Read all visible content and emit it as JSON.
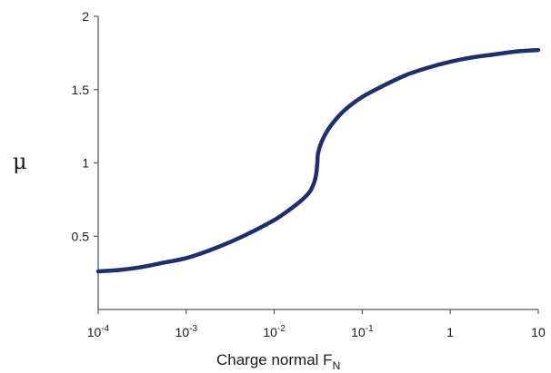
{
  "chart_data": {
    "type": "line",
    "x_scale": "log",
    "xlim": [
      0.0001,
      10
    ],
    "ylim": [
      0,
      2
    ],
    "xlabel_main": "Charge normal F",
    "xlabel_subscript": "N",
    "ylabel": "μ",
    "grid": false,
    "line_color": "#1f2f6b",
    "x_ticks": [
      {
        "value": 0.0001,
        "base": "10",
        "exp": "-4"
      },
      {
        "value": 0.001,
        "base": "10",
        "exp": "-3"
      },
      {
        "value": 0.01,
        "base": "10",
        "exp": "-2"
      },
      {
        "value": 0.1,
        "base": "10",
        "exp": "-1"
      },
      {
        "value": 1,
        "base": "1",
        "exp": ""
      },
      {
        "value": 10,
        "base": "10",
        "exp": ""
      }
    ],
    "y_ticks": [
      {
        "value": 0.5,
        "label": "0.5"
      },
      {
        "value": 1,
        "label": "1"
      },
      {
        "value": 1.5,
        "label": "1.5"
      },
      {
        "value": 2,
        "label": "2"
      }
    ],
    "series": [
      {
        "points": [
          {
            "x": 0.0001,
            "y": 0.26
          },
          {
            "x": 0.000178,
            "y": 0.27
          },
          {
            "x": 0.000316,
            "y": 0.29
          },
          {
            "x": 0.000562,
            "y": 0.32
          },
          {
            "x": 0.001,
            "y": 0.35
          },
          {
            "x": 0.00178,
            "y": 0.4
          },
          {
            "x": 0.00316,
            "y": 0.46
          },
          {
            "x": 0.00562,
            "y": 0.53
          },
          {
            "x": 0.01,
            "y": 0.61
          },
          {
            "x": 0.0141,
            "y": 0.67
          },
          {
            "x": 0.02,
            "y": 0.74
          },
          {
            "x": 0.0251,
            "y": 0.8
          },
          {
            "x": 0.0282,
            "y": 0.86
          },
          {
            "x": 0.0299,
            "y": 0.92
          },
          {
            "x": 0.0309,
            "y": 1.0
          },
          {
            "x": 0.0316,
            "y": 1.07
          },
          {
            "x": 0.0355,
            "y": 1.16
          },
          {
            "x": 0.0447,
            "y": 1.26
          },
          {
            "x": 0.0631,
            "y": 1.36
          },
          {
            "x": 0.1,
            "y": 1.45
          },
          {
            "x": 0.178,
            "y": 1.53
          },
          {
            "x": 0.316,
            "y": 1.6
          },
          {
            "x": 0.562,
            "y": 1.65
          },
          {
            "x": 1,
            "y": 1.69
          },
          {
            "x": 1.78,
            "y": 1.72
          },
          {
            "x": 3.16,
            "y": 1.74
          },
          {
            "x": 5.62,
            "y": 1.76
          },
          {
            "x": 10,
            "y": 1.77
          }
        ]
      }
    ]
  }
}
